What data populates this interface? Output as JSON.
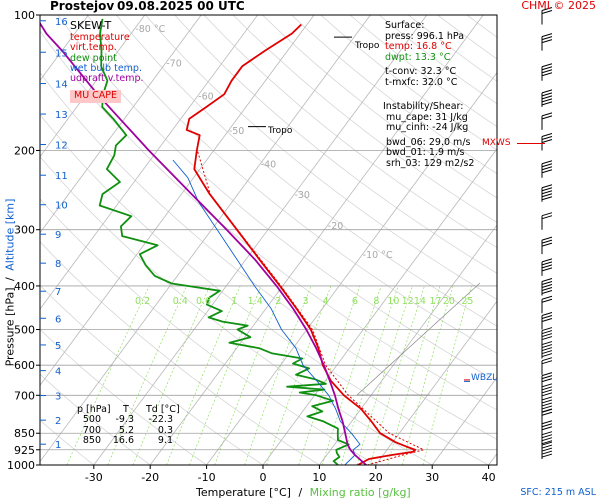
{
  "header": {
    "title": "Prostejov",
    "datetime": "09.08.2025 00 UTC",
    "credit": "CHMI © 2025"
  },
  "legend": {
    "title": "SKEW-T",
    "items": [
      {
        "label": "temperature",
        "color": "#e00000"
      },
      {
        "label": "virt.temp.",
        "color": "#e00000"
      },
      {
        "label": "dew point",
        "color": "#109010"
      },
      {
        "label": "wet bulb temp.",
        "color": "#1060d0"
      },
      {
        "label": "udpraft v.temp.",
        "color": "#a000a0"
      }
    ],
    "badge": "MU CAPE"
  },
  "surface": {
    "title": "Surface:",
    "press": "press: 996.1 hPa",
    "temp": "temp: 16.8 °C",
    "dwpt": "dwpt: 13.3 °C",
    "tconv": "t-conv: 32.3 °C",
    "tmxfc": "t-mxfc: 32.0 °C"
  },
  "instability": {
    "title": "Instability/Shear:",
    "mu_cape": "mu_cape: 31 J/kg",
    "mu_cinh": "mu_cinh: -24 J/kg",
    "bwd_06": "bwd_06: 29.0 m/s",
    "bwd_01": "bwd_01: 1.9 m/s",
    "srh_03": "srh_03: 129 m2/s2"
  },
  "table": {
    "headers": [
      "p [hPa]",
      "T",
      "Td [°C]"
    ],
    "rows": [
      [
        "500",
        "-9.3",
        "-22.3"
      ],
      [
        "700",
        "5.2",
        "0.3"
      ],
      [
        "850",
        "16.6",
        "9.1"
      ]
    ]
  },
  "annotations": {
    "tropo_upper": "Tropo",
    "tropo_lower": "Tropo",
    "mxws": "MXWS",
    "wbzl": "WBZL",
    "sfc": "SFC: 215 m ASL"
  },
  "colors": {
    "temperature": "#e00000",
    "dewpoint": "#109010",
    "wetbulb": "#1060d0",
    "parcel": "#a000a0",
    "mixing": "#90e060",
    "grid": "#b8b8b8"
  },
  "chart_data": {
    "type": "line",
    "xlabel": "Temperature [°C]",
    "xlabel_sep": "/",
    "xlabel2": "Mixing ratio [g/kg]",
    "ylabel": "Pressure [hPa]",
    "ylabel_sep": "/",
    "ylabel2": "Altitude [km]",
    "x_ticks": [
      -30,
      -20,
      -10,
      0,
      10,
      20,
      30,
      40
    ],
    "x_tick_labels": [
      "-30",
      "-20",
      "-10",
      "0",
      "10",
      "20",
      "30",
      "40"
    ],
    "pressure_ticks": [
      100,
      200,
      300,
      400,
      500,
      600,
      700,
      850,
      925,
      1000
    ],
    "pressure_tick_labels": [
      "100",
      "200",
      "300",
      "400",
      "500",
      "600",
      "700",
      "850",
      "925",
      "1000"
    ],
    "altitude_ticks": [
      {
        "label": "1",
        "p": 899
      },
      {
        "label": "2",
        "p": 795
      },
      {
        "label": "3",
        "p": 701
      },
      {
        "label": "4",
        "p": 617
      },
      {
        "label": "5",
        "p": 541
      },
      {
        "label": "6",
        "p": 472
      },
      {
        "label": "7",
        "p": 411
      },
      {
        "label": "8",
        "p": 356
      },
      {
        "label": "9",
        "p": 307
      },
      {
        "label": "10",
        "p": 264
      },
      {
        "label": "11",
        "p": 227
      },
      {
        "label": "12",
        "p": 194
      },
      {
        "label": "13",
        "p": 166
      },
      {
        "label": "14",
        "p": 142
      },
      {
        "label": "15",
        "p": 121
      },
      {
        "label": "16",
        "p": 103
      }
    ],
    "isotherm_labels": [
      {
        "label": "-80 °C",
        "t": -80,
        "p": 109
      },
      {
        "label": "-70",
        "t": -70,
        "p": 130
      },
      {
        "label": "-60",
        "t": -60,
        "p": 154
      },
      {
        "label": "-50",
        "t": -50,
        "p": 184
      },
      {
        "label": "-40",
        "t": -40,
        "p": 218
      },
      {
        "label": "-30",
        "t": -30,
        "p": 255
      },
      {
        "label": "-20",
        "t": -20,
        "p": 299
      },
      {
        "label": "-10 °C",
        "t": -10,
        "p": 347
      }
    ],
    "mixing_ratio_labels": [
      "0.2",
      "0.4",
      "0.6",
      "1",
      "1.4",
      "2",
      "3",
      "4",
      "6",
      "8",
      "10",
      "12",
      "14",
      "17",
      "20",
      "25"
    ],
    "mixing_ratio_values": [
      0.2,
      0.4,
      0.6,
      1,
      1.4,
      2,
      3,
      4,
      6,
      8,
      10,
      12,
      14,
      17,
      20,
      25
    ],
    "series": [
      {
        "key": "temperature",
        "name": "temperature",
        "points": [
          [
            1000,
            16.8
          ],
          [
            970,
            18.0
          ],
          [
            950,
            21.5
          ],
          [
            935,
            24.8
          ],
          [
            925,
            25.0
          ],
          [
            910,
            23.0
          ],
          [
            890,
            20.5
          ],
          [
            850,
            16.6
          ],
          [
            800,
            13.5
          ],
          [
            750,
            10.0
          ],
          [
            700,
            5.2
          ],
          [
            650,
            1.0
          ],
          [
            600,
            -2.5
          ],
          [
            550,
            -5.5
          ],
          [
            500,
            -9.3
          ],
          [
            450,
            -14.5
          ],
          [
            400,
            -20.5
          ],
          [
            350,
            -27.5
          ],
          [
            300,
            -35.5
          ],
          [
            250,
            -45.0
          ],
          [
            220,
            -51.0
          ],
          [
            200,
            -53.0
          ],
          [
            185,
            -54.5
          ],
          [
            180,
            -57.5
          ],
          [
            170,
            -58.5
          ],
          [
            160,
            -57.0
          ],
          [
            150,
            -55.5
          ],
          [
            140,
            -56.0
          ],
          [
            130,
            -56.0
          ],
          [
            120,
            -54.0
          ],
          [
            110,
            -51.5
          ],
          [
            105,
            -51.0
          ]
        ]
      },
      {
        "key": "virtual",
        "name": "virt.temp.",
        "points": [
          [
            1000,
            18.5
          ],
          [
            950,
            23.5
          ],
          [
            925,
            26.5
          ],
          [
            850,
            18.2
          ],
          [
            700,
            6.0
          ],
          [
            600,
            -2.0
          ],
          [
            500,
            -9.0
          ],
          [
            400,
            -20.3
          ],
          [
            300,
            -35.4
          ],
          [
            250,
            -44.9
          ],
          [
            200,
            -52.9
          ]
        ]
      },
      {
        "key": "dewpoint",
        "name": "dew point",
        "points": [
          [
            1000,
            13.3
          ],
          [
            980,
            12.0
          ],
          [
            960,
            12.5
          ],
          [
            940,
            11.5
          ],
          [
            925,
            11.0
          ],
          [
            900,
            12.5
          ],
          [
            880,
            10.0
          ],
          [
            850,
            9.1
          ],
          [
            830,
            8.5
          ],
          [
            800,
            5.0
          ],
          [
            780,
            1.5
          ],
          [
            760,
            3.5
          ],
          [
            740,
            1.0
          ],
          [
            720,
            4.0
          ],
          [
            700,
            0.3
          ],
          [
            690,
            -3.0
          ],
          [
            680,
            1.0
          ],
          [
            670,
            -6.0
          ],
          [
            660,
            0.5
          ],
          [
            645,
            -2.0
          ],
          [
            630,
            -6.0
          ],
          [
            610,
            -4.5
          ],
          [
            595,
            -8.0
          ],
          [
            580,
            -7.0
          ],
          [
            565,
            -13.0
          ],
          [
            550,
            -16.0
          ],
          [
            535,
            -22.0
          ],
          [
            520,
            -19.0
          ],
          [
            500,
            -22.3
          ],
          [
            490,
            -21.0
          ],
          [
            480,
            -26.0
          ],
          [
            470,
            -29.0
          ],
          [
            455,
            -27.5
          ],
          [
            440,
            -31.0
          ],
          [
            425,
            -31.5
          ],
          [
            410,
            -30.5
          ],
          [
            395,
            -40.0
          ],
          [
            380,
            -44.0
          ],
          [
            360,
            -47.0
          ],
          [
            340,
            -49.5
          ],
          [
            325,
            -47.5
          ],
          [
            310,
            -55.0
          ],
          [
            295,
            -56.5
          ],
          [
            280,
            -56.0
          ],
          [
            265,
            -63.0
          ],
          [
            250,
            -64.0
          ],
          [
            235,
            -62.5
          ],
          [
            220,
            -66.5
          ],
          [
            205,
            -67.0
          ],
          [
            195,
            -68.0
          ],
          [
            185,
            -67.5
          ],
          [
            170,
            -72.0
          ],
          [
            160,
            -75.5
          ],
          [
            150,
            -77.0
          ],
          [
            140,
            -78.0
          ],
          [
            130,
            -81.0
          ],
          [
            120,
            -83.0
          ],
          [
            110,
            -85.5
          ],
          [
            102,
            -87.0
          ]
        ]
      },
      {
        "key": "wetbulb",
        "name": "wet bulb temp.",
        "points": [
          [
            1000,
            14.5
          ],
          [
            950,
            15.0
          ],
          [
            925,
            14.0
          ],
          [
            900,
            14.5
          ],
          [
            850,
            11.5
          ],
          [
            800,
            8.0
          ],
          [
            750,
            5.5
          ],
          [
            700,
            2.5
          ],
          [
            650,
            -1.5
          ],
          [
            600,
            -6.0
          ],
          [
            550,
            -9.5
          ],
          [
            500,
            -14.5
          ],
          [
            450,
            -19.0
          ],
          [
            400,
            -25.0
          ],
          [
            350,
            -31.5
          ],
          [
            300,
            -39.0
          ],
          [
            260,
            -46.0
          ],
          [
            230,
            -51.0
          ],
          [
            210,
            -56.0
          ]
        ]
      },
      {
        "key": "parcel",
        "name": "udpraft v.temp.",
        "points": [
          [
            1000,
            18.3
          ],
          [
            950,
            15.0
          ],
          [
            925,
            13.5
          ],
          [
            900,
            12.3
          ],
          [
            850,
            10.4
          ],
          [
            800,
            8.4
          ],
          [
            750,
            6.0
          ],
          [
            700,
            3.6
          ],
          [
            650,
            0.8
          ],
          [
            600,
            -2.3
          ],
          [
            550,
            -5.9
          ],
          [
            500,
            -10.1
          ],
          [
            450,
            -15.1
          ],
          [
            400,
            -21.1
          ],
          [
            350,
            -28.3
          ],
          [
            300,
            -37.3
          ],
          [
            250,
            -48.2
          ],
          [
            200,
            -61.5
          ],
          [
            150,
            -78.0
          ],
          [
            120,
            -90.0
          ],
          [
            110,
            -95.0
          ],
          [
            100,
            -99.5
          ]
        ]
      }
    ],
    "wind_levels_hpa": [
      105,
      120,
      140,
      160,
      180,
      200,
      230,
      260,
      300,
      340,
      380,
      420,
      460,
      500,
      540,
      580,
      630,
      680,
      720,
      770,
      820,
      870,
      920,
      970
    ]
  }
}
